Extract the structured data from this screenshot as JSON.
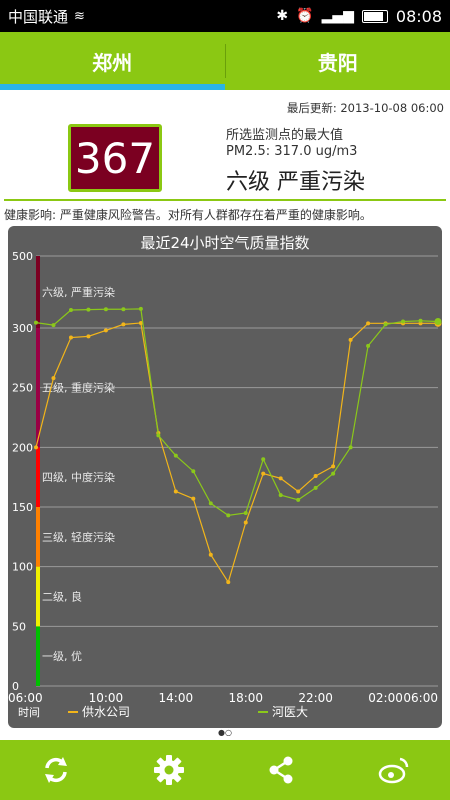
{
  "status": {
    "carrier": "中国联通",
    "time": "08:08"
  },
  "tabs": [
    {
      "label": "郑州"
    },
    {
      "label": "贵阳"
    }
  ],
  "updated": "最后更新: 2013-10-08 06:00",
  "aqi": {
    "value": "367",
    "label": "所选监测点的最大值",
    "pm": "PM2.5: 317.0 ug/m3",
    "level": "六级 严重污染",
    "color": "#7b0021"
  },
  "health": "健康影响: 严重健康风险警告。对所有人群都存在着严重的健康影响。",
  "chart_data": {
    "type": "line",
    "title": "最近24小时空气质量指数",
    "xlabel": "时间",
    "x_ticks": [
      "06:00",
      "10:00",
      "14:00",
      "18:00",
      "22:00",
      "02:00",
      "06:00"
    ],
    "y_ticks": [
      0,
      50,
      100,
      150,
      200,
      250,
      300,
      500
    ],
    "ylim": [
      0,
      500
    ],
    "bands": [
      {
        "label": "一级, 优",
        "from": 0,
        "to": 50,
        "color": "#00c000"
      },
      {
        "label": "二级, 良",
        "from": 50,
        "to": 100,
        "color": "#f0f000"
      },
      {
        "label": "三级, 轻度污染",
        "from": 100,
        "to": 150,
        "color": "#ff8000"
      },
      {
        "label": "四级, 中度污染",
        "from": 150,
        "to": 200,
        "color": "#ff0000"
      },
      {
        "label": "五级, 重度污染",
        "from": 200,
        "to": 300,
        "color": "#990044"
      },
      {
        "label": "六级, 严重污染",
        "from": 300,
        "to": 500,
        "color": "#7b0021"
      }
    ],
    "series": [
      {
        "name": "供水公司",
        "color": "#f2b51a",
        "values": [
          200,
          258,
          292,
          293,
          298,
          310,
          314,
          212,
          163,
          157,
          110,
          87,
          137,
          178,
          174,
          163,
          176,
          184,
          290,
          313,
          313,
          313,
          313,
          313
        ]
      },
      {
        "name": "河医大",
        "color": "#8bc81a",
        "values": [
          315,
          308,
          350,
          351,
          352,
          352,
          353,
          210,
          193,
          180,
          153,
          143,
          145,
          190,
          160,
          156,
          166,
          178,
          200,
          285,
          310,
          318,
          320,
          318
        ]
      }
    ]
  }
}
